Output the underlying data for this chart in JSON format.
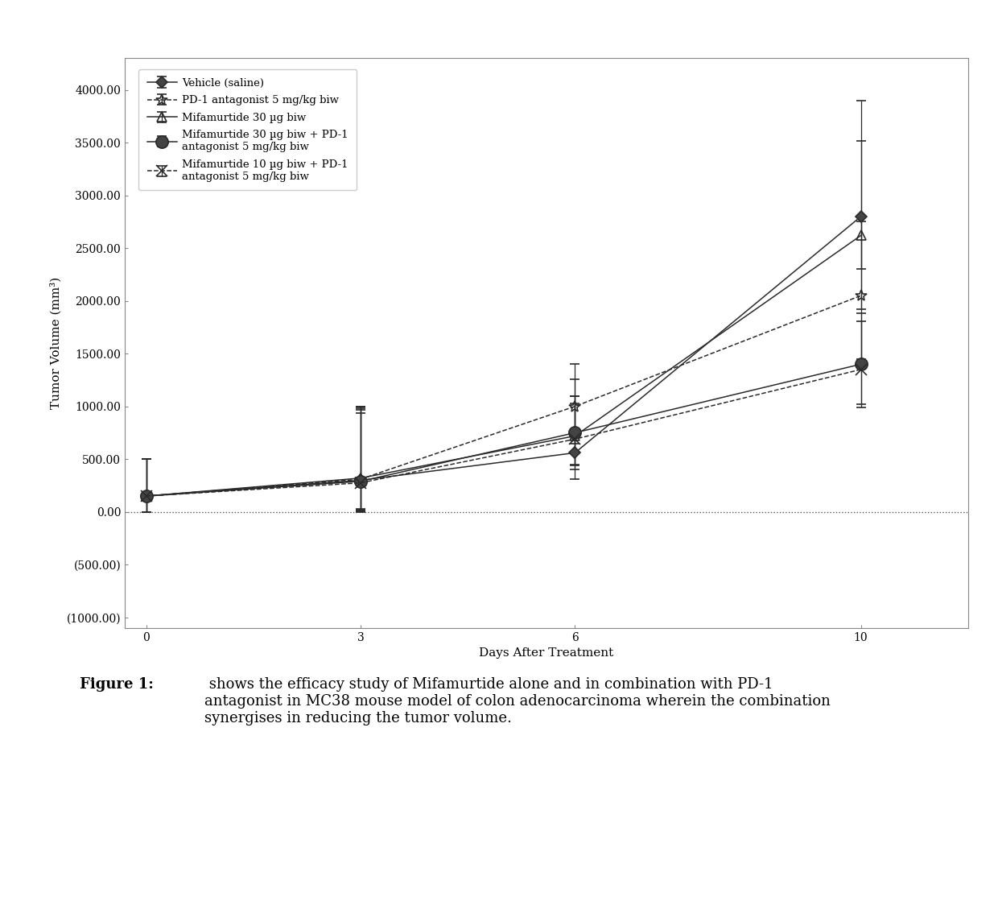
{
  "series": [
    {
      "label": "Vehicle (saline)",
      "x": [
        0,
        3,
        6,
        10
      ],
      "y": [
        150,
        300,
        560,
        2800
      ],
      "yerr_low": [
        150,
        300,
        250,
        500
      ],
      "yerr_high": [
        350,
        700,
        700,
        1100
      ],
      "color": "#2a2a2a",
      "marker": "D",
      "markersize": 7,
      "linestyle": "-",
      "filled": true
    },
    {
      "label": "PD-1 antagonist 5 mg/kg biw",
      "x": [
        0,
        3,
        6,
        10
      ],
      "y": [
        150,
        310,
        1000,
        2050
      ],
      "yerr_low": [
        150,
        280,
        350,
        600
      ],
      "yerr_high": [
        350,
        670,
        400,
        700
      ],
      "color": "#2a2a2a",
      "marker": "*",
      "markersize": 10,
      "linestyle": "--",
      "filled": false
    },
    {
      "label": "Mifamurtide 30 µg biw",
      "x": [
        0,
        3,
        6,
        10
      ],
      "y": [
        150,
        320,
        720,
        2620
      ],
      "yerr_low": [
        150,
        300,
        280,
        700
      ],
      "yerr_high": [
        350,
        680,
        380,
        900
      ],
      "color": "#2a2a2a",
      "marker": "^",
      "markersize": 8,
      "linestyle": "-",
      "filled": false
    },
    {
      "label": "Mifamurtide 30 µg biw + PD-1\nantagonist 5 mg/kg biw",
      "x": [
        0,
        3,
        6,
        10
      ],
      "y": [
        150,
        290,
        750,
        1400
      ],
      "yerr_low": [
        150,
        280,
        300,
        380
      ],
      "yerr_high": [
        350,
        680,
        350,
        480
      ],
      "color": "#2a2a2a",
      "marker": "o",
      "markersize": 11,
      "linestyle": "-",
      "filled": true
    },
    {
      "label": "Mifamurtide 10 µg biw + PD-1\nantagonist 5 mg/kg biw",
      "x": [
        0,
        3,
        6,
        10
      ],
      "y": [
        150,
        275,
        690,
        1350
      ],
      "yerr_low": [
        150,
        270,
        290,
        360
      ],
      "yerr_high": [
        350,
        660,
        340,
        460
      ],
      "color": "#2a2a2a",
      "marker": "x",
      "markersize": 10,
      "linestyle": "--",
      "filled": false
    }
  ],
  "xlabel": "Days After Treatment",
  "ylabel": "Tumor Volume (mm³)",
  "yticks": [
    -1000,
    -500,
    0,
    500,
    1000,
    1500,
    2000,
    2500,
    3000,
    3500,
    4000
  ],
  "ytick_labels": [
    "(1000.00)",
    "(500.00)",
    "0.00",
    "500.00",
    "1000.00",
    "1500.00",
    "2000.00",
    "2500.00",
    "3000.00",
    "3500.00",
    "4000.00"
  ],
  "xticks": [
    0,
    3,
    6,
    10
  ],
  "xlim": [
    -0.3,
    11.5
  ],
  "ylim": [
    -1100,
    4300
  ],
  "background_color": "#ffffff",
  "line_color": "#2a2a2a",
  "fontsize": 11,
  "caption_fontsize": 13,
  "tick_fontsize": 10
}
